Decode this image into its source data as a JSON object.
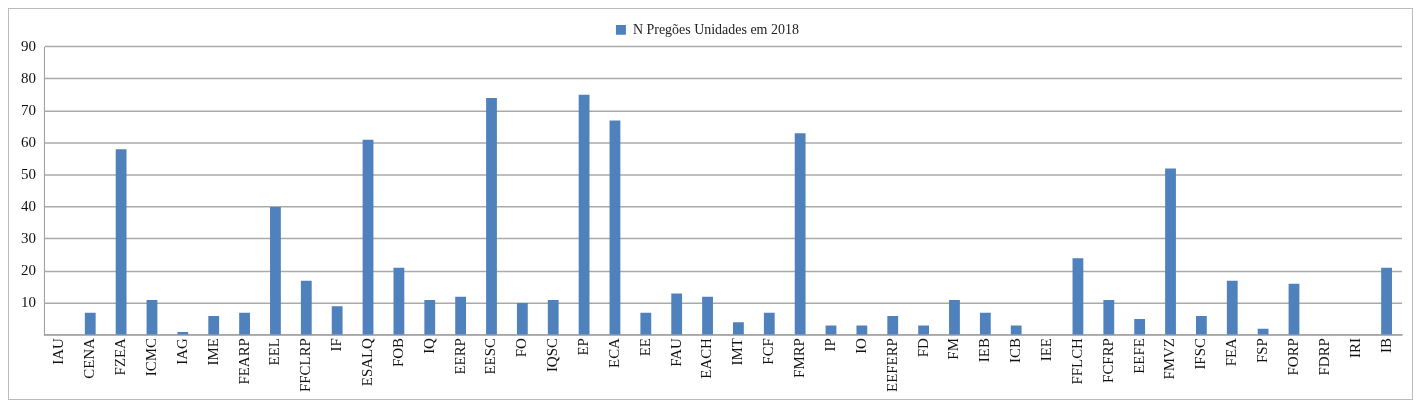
{
  "chart_data": {
    "type": "bar",
    "categories": [
      "IAU",
      "CENA",
      "FZEA",
      "ICMC",
      "IAG",
      "IME",
      "FEARP",
      "EEL",
      "FFCLRP",
      "IF",
      "ESALQ",
      "FOB",
      "IQ",
      "EERP",
      "EESC",
      "FO",
      "IQSC",
      "EP",
      "ECA",
      "EE",
      "FAU",
      "EACH",
      "IMT",
      "FCF",
      "FMRP",
      "IP",
      "IO",
      "EEFERP",
      "FD",
      "FM",
      "IEB",
      "ICB",
      "IEE",
      "FFLCH",
      "FCFRP",
      "EEFE",
      "FMVZ",
      "IFSC",
      "FEA",
      "FSP",
      "FORP",
      "FDRP",
      "IRI",
      "IB"
    ],
    "series": [
      {
        "name": "N Pregões Unidades em 2018",
        "color": "#4f81bd",
        "values": [
          0,
          7,
          58,
          11,
          1,
          6,
          7,
          40,
          17,
          9,
          61,
          21,
          11,
          12,
          74,
          10,
          11,
          75,
          67,
          7,
          13,
          12,
          4,
          7,
          63,
          3,
          3,
          6,
          3,
          11,
          7,
          3,
          0,
          24,
          11,
          5,
          52,
          6,
          17,
          2,
          16,
          0,
          0,
          21
        ]
      }
    ],
    "ylim": [
      0,
      90
    ],
    "yticks": [
      {
        "value": 0,
        "label": null
      },
      10,
      20,
      30,
      40,
      50,
      60,
      70,
      80,
      90
    ],
    "grid": "y",
    "legend": "top"
  }
}
